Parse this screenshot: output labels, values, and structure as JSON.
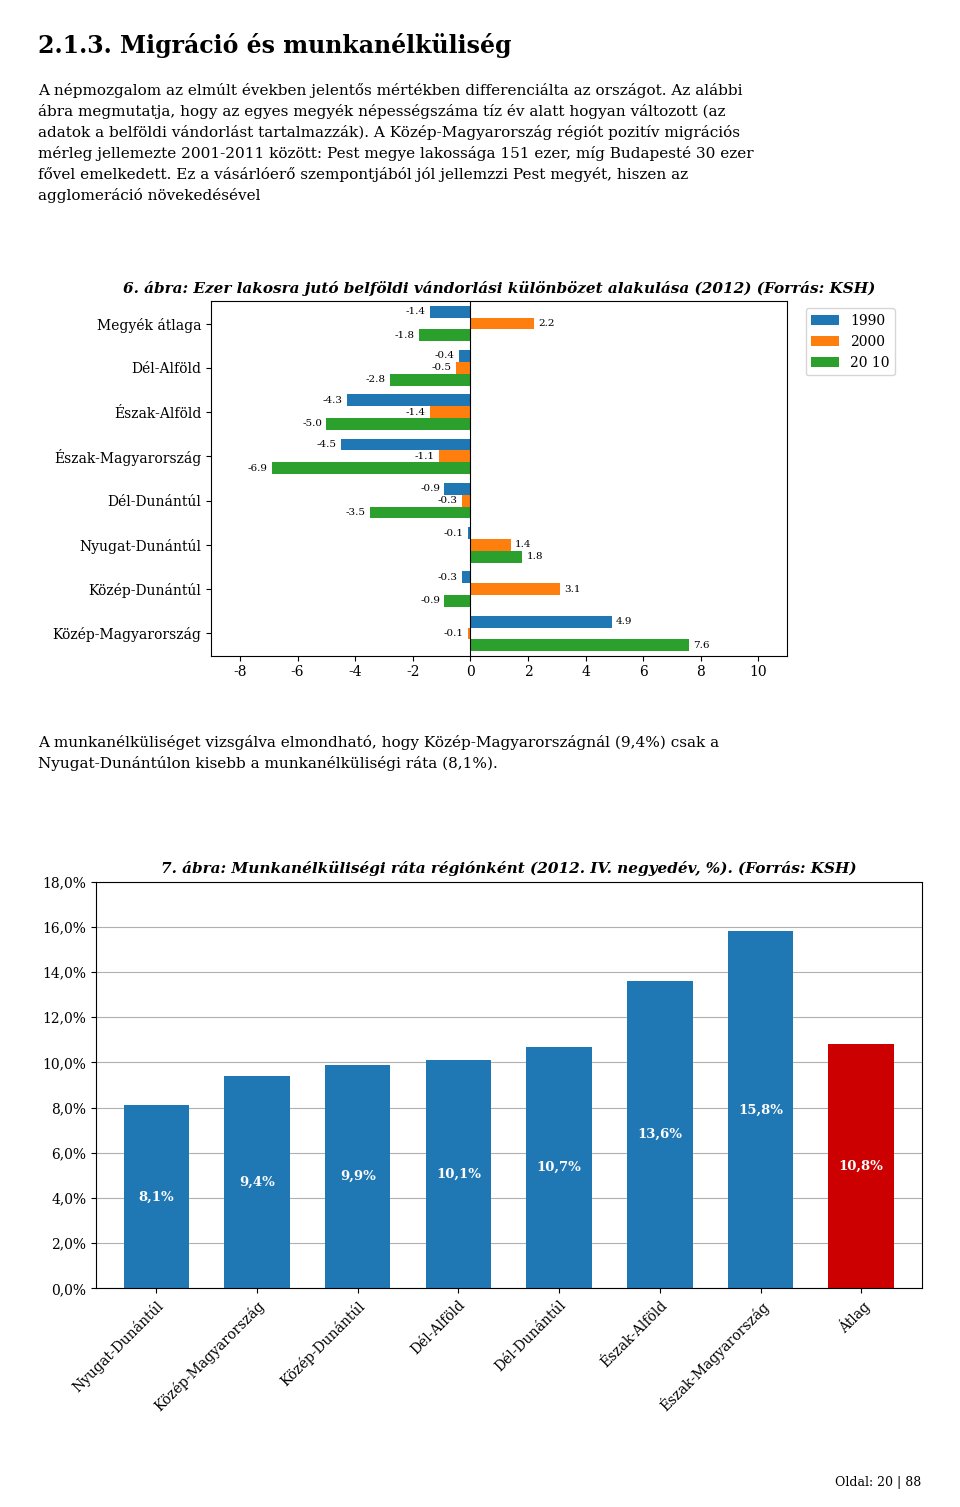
{
  "title": "2.1.3. Migráció és munkanélküliség",
  "annotations": [
    "A népmozgalom az elmúlt években jelentős mértékben differenciálta az országot. Az alábbi\nábra megmutatja, hogy az egyes megyék népességszáma tíz év alatt hogyan változott (az\nadatok a belföldi vándorlást tartalmazzák). A Közép-Magyarország régiót pozitív migrációs\nmérleg jellemezte 2001-2011 között: Pest megye lakossága 151 ezer, míg Budapesté 30 ezer\nfővel emelkedett. Ez a vásárlóerő szempontjából jól jellemzzi Pest megyét, hiszen az\nagglomeráció növekedésével",
    "A munkanélküliséget vizsgálva elmondható, hogy Közép-Magyarországnál (9,4%) csak a\nNyugat-Dunántúlon kisebb a munkanélküliségi ráta (8,1%).",
    "Oldal: 20 | 88"
  ],
  "chart_data": [
    {
      "type": "bar",
      "orientation": "horizontal",
      "title": "6. ábra: Ezer lakosra jutó belföldi vándorlási különbözet alakulása (2012) (Forrás: KSH)",
      "categories": [
        "Megyék átlaga",
        "Dél-Alföld",
        "Észak-Alföld",
        "Észak-Magyarország",
        "Dél-Dunántúl",
        "Nyugat-Dunántúl",
        "Közép-Dunántúl",
        "Közép-Magyarország"
      ],
      "series": [
        {
          "name": "1990",
          "values": [
            -1.4,
            -0.4,
            -4.3,
            -4.5,
            -0.9,
            -0.1,
            -0.3,
            4.9
          ]
        },
        {
          "name": "2000",
          "values": [
            2.2,
            -0.5,
            -1.4,
            -1.1,
            -0.3,
            1.4,
            3.1,
            -0.1
          ]
        },
        {
          "name": "20 10",
          "values": [
            -1.8,
            -2.8,
            -5.0,
            -6.9,
            -3.5,
            1.8,
            -0.9,
            7.6
          ]
        }
      ],
      "xlim": [
        -9,
        11
      ],
      "xticks": [
        -8,
        -6,
        -4,
        -2,
        0,
        2,
        4,
        6,
        8,
        10
      ],
      "data_labels": true,
      "legend": "upper left",
      "grid": false
    },
    {
      "type": "bar",
      "title": "7. ábra: Munkanélküliségi ráta régiónként (2012. IV. negyedév, %). (Forrás: KSH)",
      "categories": [
        "Nyugat-Dunántúl",
        "Közép-Magyarország",
        "Közép-Dunántúl",
        "Dél-Alföld",
        "Dél-Dunántúl",
        "Észak-Alföld",
        "Észak-Magyarország",
        "Átlag"
      ],
      "values": [
        8.1,
        9.4,
        9.9,
        10.1,
        10.7,
        13.6,
        15.8,
        10.8
      ],
      "value_labels": [
        "8,1%",
        "9,4%",
        "9,9%",
        "10,1%",
        "10,7%",
        "13,6%",
        "15,8%",
        "10,8%"
      ],
      "colors": [
        "#1f77b4",
        "#1f77b4",
        "#1f77b4",
        "#1f77b4",
        "#1f77b4",
        "#1f77b4",
        "#1f77b4",
        "#cc0000"
      ],
      "ylim": [
        0,
        18
      ],
      "yticks": [
        {
          "value": 0,
          "label": "0,0%"
        },
        {
          "value": 2,
          "label": "2,0%"
        },
        {
          "value": 4,
          "label": "4,0%"
        },
        {
          "value": 6,
          "label": "6,0%"
        },
        {
          "value": 8,
          "label": "8,0%"
        },
        {
          "value": 10,
          "label": "10,0%"
        },
        {
          "value": 12,
          "label": "12,0%"
        },
        {
          "value": 14,
          "label": "14,0%"
        },
        {
          "value": 16,
          "label": "16,0%"
        },
        {
          "value": 18,
          "label": "18,0%"
        }
      ],
      "data_labels": true,
      "grid": true
    }
  ]
}
